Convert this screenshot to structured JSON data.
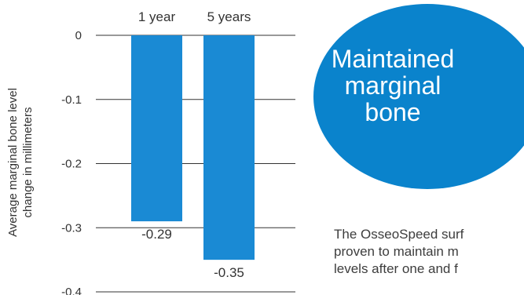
{
  "chart_data": {
    "type": "bar",
    "categories": [
      "1 year",
      "5 years"
    ],
    "values": [
      -0.29,
      -0.35
    ],
    "data_labels": [
      "-0.29",
      "-0.35"
    ],
    "ylabel_lines": [
      "Average marginal bone level",
      "change in millimeters"
    ],
    "yticks": [
      "0",
      "-0.1",
      "-0.2",
      "-0.3",
      "-0.4"
    ],
    "ylim": [
      -0.4,
      0
    ],
    "grid": true,
    "bar_color": "#1a8ad4",
    "grid_color": "#333333"
  },
  "badge": {
    "lines": [
      "Maintained",
      "marginal",
      "bone"
    ],
    "color": "#0a83cc"
  },
  "caption": {
    "lines": [
      "The OsseoSpeed surf",
      "proven to maintain m",
      "levels after one and f"
    ]
  }
}
